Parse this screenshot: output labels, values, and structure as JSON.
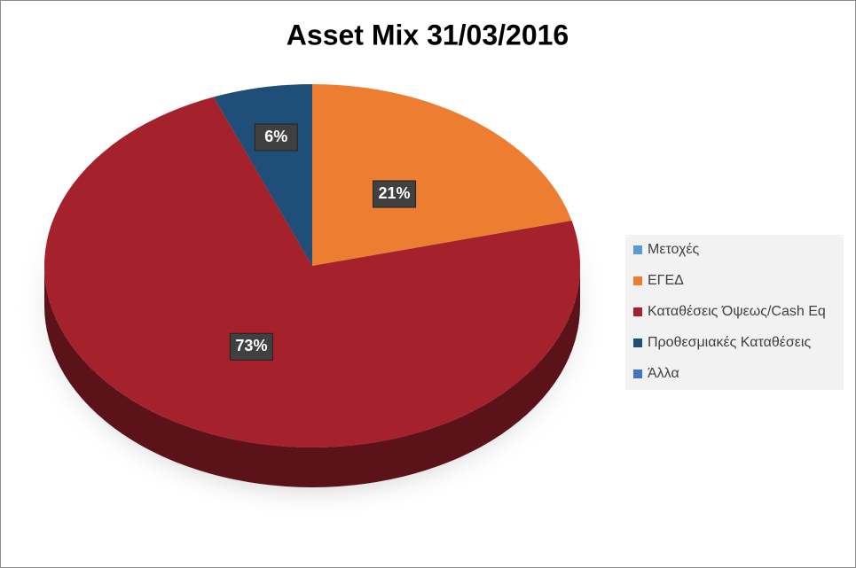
{
  "chart_data": {
    "type": "pie",
    "title": "Asset Mix 31/03/2016",
    "categories": [
      "Μετοχές",
      "ΕΓΕΔ",
      "Καταθέσεις Όψεως/Cash Eq",
      "Προθεσμιακές Καταθέσεις",
      "Άλλα"
    ],
    "values": [
      0,
      21,
      73,
      6,
      0
    ],
    "value_labels": [
      null,
      "21%",
      "73%",
      "6%",
      null
    ],
    "colors": [
      "#5b9bd5",
      "#ed7d31",
      "#a5212c",
      "#1f4e79",
      "#4472c4"
    ],
    "legend": "right",
    "three_d": true
  }
}
